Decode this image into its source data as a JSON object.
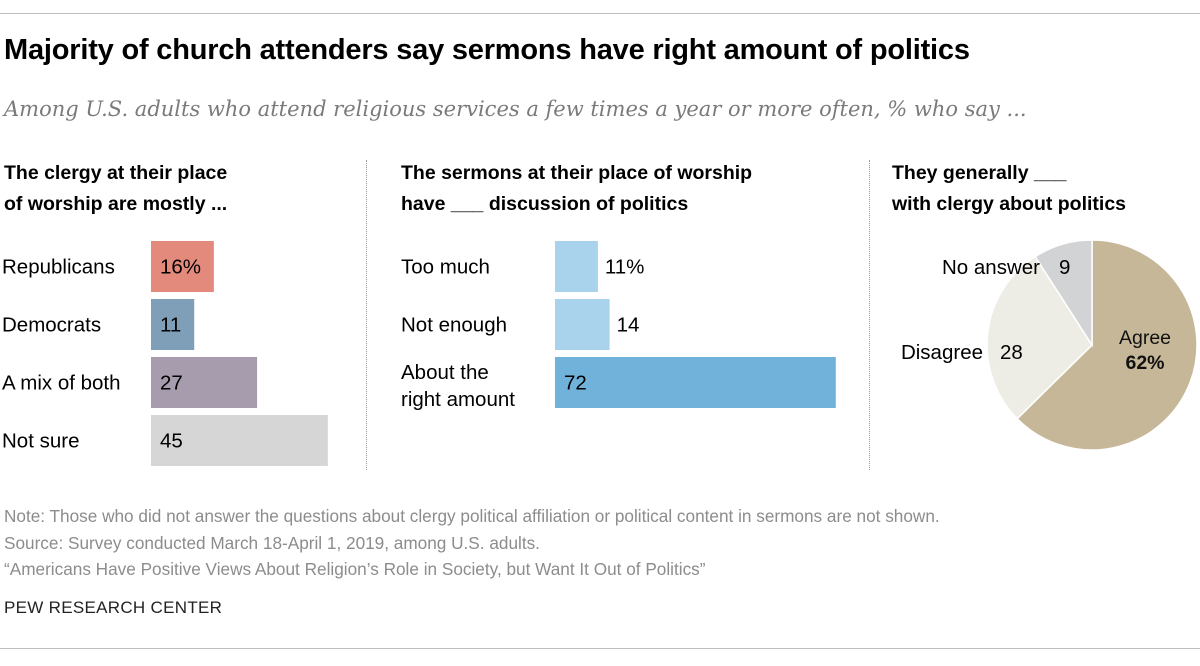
{
  "title": "Majority of church attenders say sermons have right amount of politics",
  "subtitle": "Among U.S. adults who attend religious services a few times a year or more often, % who say ...",
  "panels": [
    {
      "heading_lines": [
        "The clergy at their place",
        "of worship are mostly ..."
      ]
    },
    {
      "heading_lines": [
        "The sermons at their place of worship",
        "have ___ discussion of politics"
      ]
    },
    {
      "heading_lines": [
        "They generally ___",
        "with clergy about politics"
      ]
    }
  ],
  "chart_data": [
    {
      "type": "bar",
      "orientation": "horizontal",
      "categories": [
        "Republicans",
        "Democrats",
        "A mix of both",
        "Not sure"
      ],
      "values": [
        16,
        11,
        27,
        45
      ],
      "value_labels": [
        "16%",
        "11",
        "27",
        "45"
      ],
      "colors": [
        "#e38a7c",
        "#7f9fb9",
        "#a69cae",
        "#d6d6d6"
      ]
    },
    {
      "type": "bar",
      "orientation": "horizontal",
      "categories": [
        [
          "Too much"
        ],
        [
          "Not enough"
        ],
        [
          "About the",
          "right amount"
        ]
      ],
      "values": [
        11,
        14,
        72
      ],
      "value_labels": [
        "11%",
        "14",
        "72"
      ],
      "colors": [
        "#a9d3ec",
        "#a9d3ec",
        "#70b2d9"
      ]
    },
    {
      "type": "pie",
      "slices": [
        {
          "label": "Agree",
          "value": 62,
          "value_label": "62%",
          "color": "#c6b798"
        },
        {
          "label": "Disagree",
          "value": 28,
          "value_label": "28",
          "color": "#eeede5"
        },
        {
          "label": "No answer",
          "value": 9,
          "value_label": "9",
          "color": "#d2d3d5"
        }
      ]
    }
  ],
  "notes": [
    "Note: Those who did not answer the questions about clergy political affiliation or political content in sermons are not shown.",
    "Source: Survey conducted March 18-April 1, 2019, among U.S. adults.",
    "“Americans Have Positive Views About Religion’s Role in Society, but Want It Out of Politics”"
  ],
  "source_org": "PEW RESEARCH CENTER"
}
